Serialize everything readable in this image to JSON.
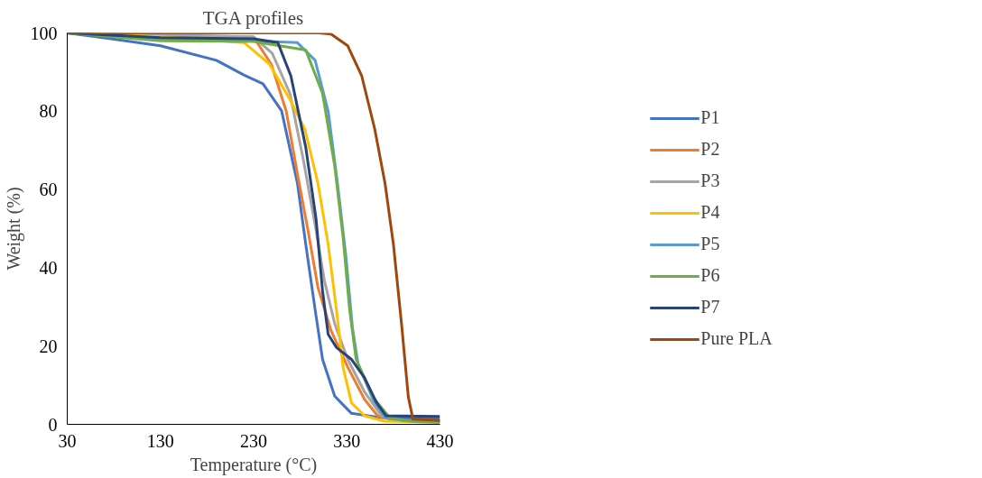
{
  "chart_data": {
    "type": "line",
    "title": "TGA profiles",
    "xlabel": "Temperature (°C)",
    "ylabel": "Weight (%)",
    "xlim": [
      30,
      430
    ],
    "xticks": [
      30,
      130,
      230,
      330,
      430
    ],
    "ylim": [
      0,
      100
    ],
    "yticks": [
      0,
      20,
      40,
      60,
      80,
      100
    ],
    "grid": false,
    "legend": "right",
    "line_style": "solid",
    "marker": "none",
    "series": [
      {
        "name": "P1",
        "color": "#4472c4",
        "x": [
          30,
          77,
          130,
          190,
          220,
          240,
          260,
          277,
          286,
          296,
          304,
          317,
          335,
          367,
          430
        ],
        "values": [
          100,
          98.5,
          96.7,
          93,
          89.2,
          87,
          80.1,
          61.6,
          45.9,
          29.3,
          16.6,
          7.2,
          2.8,
          1.7,
          1.5
        ]
      },
      {
        "name": "P2",
        "color": "#ed7d31",
        "x": [
          30,
          130,
          230,
          249,
          265,
          277,
          288,
          299,
          313,
          331,
          349,
          363,
          380,
          430
        ],
        "values": [
          100,
          99.3,
          98.9,
          92,
          80,
          64,
          50,
          35,
          24,
          14.6,
          6.4,
          2.2,
          1,
          0.8
        ]
      },
      {
        "name": "P3",
        "color": "#a5a5a5",
        "x": [
          30,
          130,
          230,
          250,
          269,
          283,
          296,
          306,
          317,
          331,
          349,
          367,
          385,
          430
        ],
        "values": [
          100,
          99.5,
          99,
          94.8,
          84.5,
          68,
          51,
          36.7,
          25.7,
          16.6,
          8.3,
          2.2,
          1,
          0.8
        ]
      },
      {
        "name": "P4",
        "color": "#ffc000",
        "x": [
          30,
          130,
          220,
          247,
          269,
          285,
          299,
          310,
          319,
          326,
          335,
          349,
          370,
          430
        ],
        "values": [
          100,
          99,
          97.5,
          92,
          83,
          75.4,
          61.6,
          46,
          29,
          14.6,
          5.5,
          2.2,
          0.8,
          0.5
        ]
      },
      {
        "name": "P5",
        "color": "#5b9bd5",
        "x": [
          30,
          130,
          230,
          277,
          296,
          310,
          320,
          329,
          336,
          342,
          358,
          371,
          390,
          430
        ],
        "values": [
          100,
          98.5,
          98,
          97.5,
          93,
          80,
          61.6,
          43,
          24.8,
          15.5,
          6.4,
          1.7,
          1,
          0.8
        ]
      },
      {
        "name": "P6",
        "color": "#70ad47",
        "x": [
          30,
          130,
          230,
          286,
          304,
          317,
          326,
          333,
          340,
          358,
          376,
          400,
          430
        ],
        "values": [
          100,
          98,
          97.8,
          95.6,
          84.5,
          66,
          47.8,
          29.3,
          16.6,
          7,
          1.7,
          0.7,
          0.5
        ]
      },
      {
        "name": "P7",
        "color": "#264478",
        "x": [
          30,
          130,
          230,
          256,
          270,
          286,
          297,
          304,
          310,
          319,
          335,
          349,
          362,
          372,
          430
        ],
        "values": [
          100,
          98.8,
          98.5,
          97.5,
          89,
          70.7,
          52.5,
          34,
          23,
          19.6,
          16.6,
          11.9,
          5.5,
          2.2,
          2
        ]
      },
      {
        "name": "Pure PLA",
        "color": "#9e480e",
        "x": [
          30,
          200,
          300,
          313,
          331,
          346,
          360,
          371,
          380,
          389,
          396,
          401,
          430
        ],
        "values": [
          100,
          100,
          100,
          99.7,
          96.7,
          89,
          75.4,
          61.6,
          46,
          25,
          7,
          1.3,
          1
        ]
      }
    ]
  }
}
